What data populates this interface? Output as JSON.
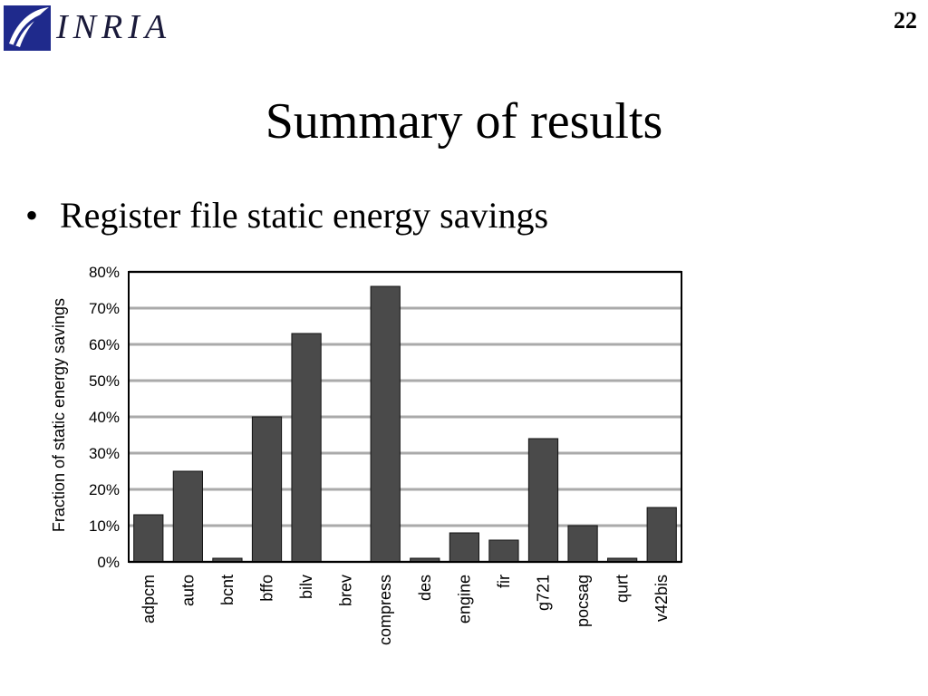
{
  "header": {
    "logo_text": "INRIA",
    "slide_number": "22"
  },
  "slide": {
    "title": "Summary of results",
    "bullet": "Register file static energy savings"
  },
  "icons": {
    "logo": "inria-logo-icon",
    "bullet": "bullet-dot-icon"
  },
  "colors": {
    "bar": "#4a4a4a",
    "grid": "#aaaaaa",
    "logo_blue": "#1f2a8c"
  },
  "chart_data": {
    "type": "bar",
    "title": "",
    "xlabel": "",
    "ylabel": "Fraction of static energy savings",
    "ylim": [
      0,
      80
    ],
    "yticks": [
      "0%",
      "10%",
      "20%",
      "30%",
      "40%",
      "50%",
      "60%",
      "70%",
      "80%"
    ],
    "grid": true,
    "categories": [
      "adpcm",
      "auto",
      "bcnt",
      "bffo",
      "bilv",
      "brev",
      "compress",
      "des",
      "engine",
      "fir",
      "g721",
      "pocsag",
      "qurt",
      "v42bis"
    ],
    "values": [
      13,
      25,
      1,
      40,
      63,
      0,
      76,
      1,
      8,
      6,
      34,
      10,
      1,
      15
    ]
  }
}
